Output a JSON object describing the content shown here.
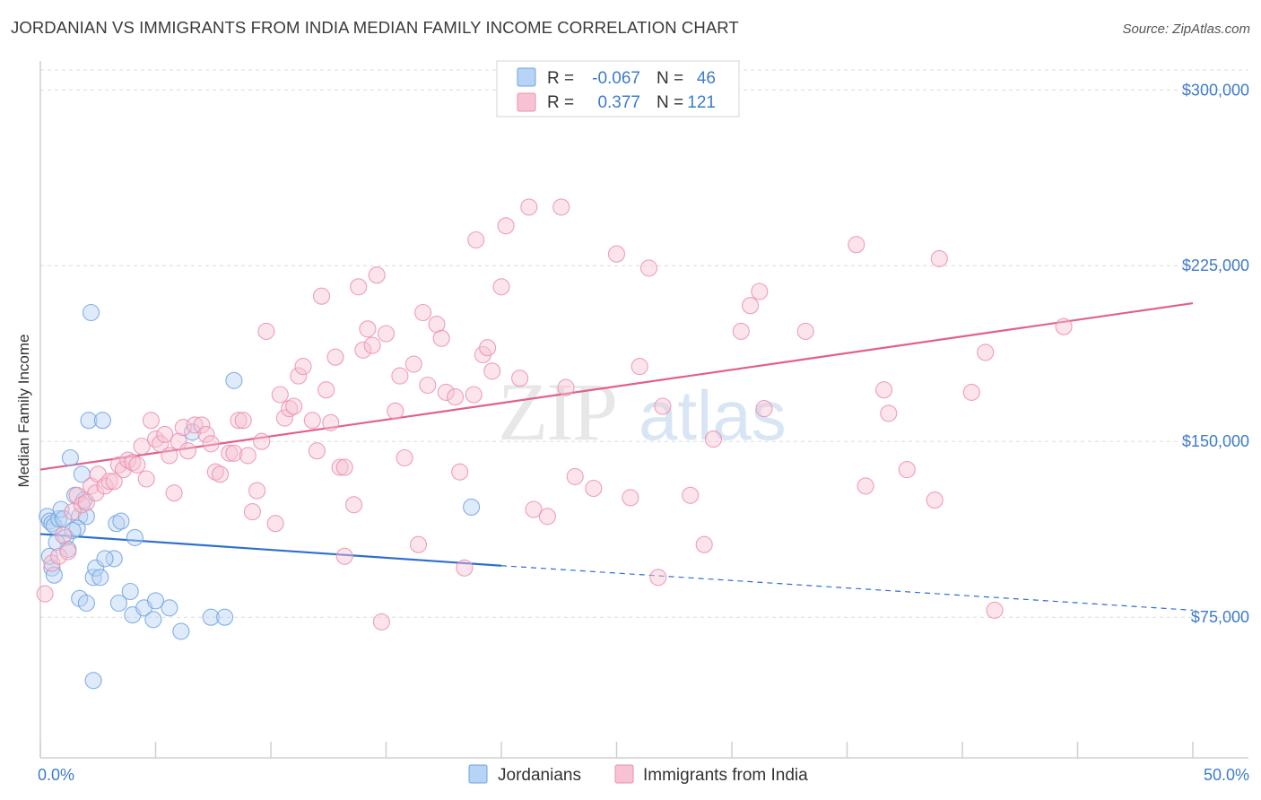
{
  "header": {
    "title": "JORDANIAN VS IMMIGRANTS FROM INDIA MEDIAN FAMILY INCOME CORRELATION CHART",
    "source": "Source: ZipAtlas.com"
  },
  "chart_data": {
    "type": "scatter",
    "title": "JORDANIAN VS IMMIGRANTS FROM INDIA MEDIAN FAMILY INCOME CORRELATION CHART",
    "xlabel": "",
    "ylabel": "Median Family Income",
    "xlim": [
      0,
      50
    ],
    "ylim": [
      15000,
      320000
    ],
    "x_tick_labels": [
      "0.0%",
      "50.0%"
    ],
    "y_ticks": [
      75000,
      150000,
      225000,
      300000
    ],
    "y_tick_labels": [
      "$75,000",
      "$150,000",
      "$225,000",
      "$300,000"
    ],
    "grid": true,
    "watermark": "ZIPatlas",
    "legend_top": [
      {
        "r_label": "R =",
        "r_value": "-0.067",
        "n_label": "N =",
        "n_value": "46"
      },
      {
        "r_label": "R =",
        "r_value": "0.377",
        "n_label": "N =",
        "n_value": "121"
      }
    ],
    "series": [
      {
        "name": "Jordanians",
        "color": "#6fa3e0",
        "fill": "#b7d3f5",
        "line_color": "#2d6fcf",
        "trend": {
          "x0": 0,
          "y0": 110500,
          "x1": 20,
          "y1": 97000,
          "x_dash_end": 50,
          "y_dash_end": 78000
        },
        "points": [
          [
            0.3,
            118000
          ],
          [
            0.4,
            116000
          ],
          [
            0.5,
            115000
          ],
          [
            0.6,
            114000
          ],
          [
            0.8,
            117000
          ],
          [
            0.9,
            121000
          ],
          [
            1.0,
            117000
          ],
          [
            1.1,
            109000
          ],
          [
            1.2,
            104000
          ],
          [
            0.7,
            107000
          ],
          [
            0.5,
            96000
          ],
          [
            0.6,
            93000
          ],
          [
            0.4,
            101000
          ],
          [
            1.3,
            143000
          ],
          [
            1.5,
            127000
          ],
          [
            1.7,
            118000
          ],
          [
            1.9,
            125000
          ],
          [
            1.8,
            136000
          ],
          [
            2.0,
            118000
          ],
          [
            2.1,
            159000
          ],
          [
            2.7,
            159000
          ],
          [
            2.2,
            205000
          ],
          [
            1.6,
            113000
          ],
          [
            1.4,
            112000
          ],
          [
            2.3,
            92000
          ],
          [
            2.4,
            96000
          ],
          [
            2.6,
            92000
          ],
          [
            3.2,
            100000
          ],
          [
            2.8,
            100000
          ],
          [
            3.3,
            115000
          ],
          [
            3.5,
            116000
          ],
          [
            4.1,
            109000
          ],
          [
            1.7,
            83000
          ],
          [
            2.0,
            81000
          ],
          [
            3.4,
            81000
          ],
          [
            3.9,
            86000
          ],
          [
            4.0,
            76000
          ],
          [
            4.5,
            79000
          ],
          [
            4.9,
            74000
          ],
          [
            5.0,
            82000
          ],
          [
            5.6,
            79000
          ],
          [
            6.1,
            69000
          ],
          [
            7.4,
            75000
          ],
          [
            8.0,
            75000
          ],
          [
            8.4,
            176000
          ],
          [
            6.6,
            154000
          ],
          [
            2.3,
            48000
          ],
          [
            18.7,
            122000
          ]
        ]
      },
      {
        "name": "Immigrants from India",
        "color": "#eb8fae",
        "fill": "#f7c3d4",
        "line_color": "#e0608f",
        "trend": {
          "x0": 0,
          "y0": 138000,
          "x1": 50,
          "y1": 209000
        },
        "points": [
          [
            0.2,
            85000
          ],
          [
            0.5,
            98000
          ],
          [
            0.8,
            101000
          ],
          [
            1.0,
            110000
          ],
          [
            1.2,
            103000
          ],
          [
            1.4,
            120000
          ],
          [
            1.6,
            127000
          ],
          [
            1.8,
            123000
          ],
          [
            2.0,
            124000
          ],
          [
            2.2,
            131000
          ],
          [
            2.4,
            128000
          ],
          [
            2.5,
            136000
          ],
          [
            2.8,
            131000
          ],
          [
            3.0,
            133000
          ],
          [
            3.2,
            133000
          ],
          [
            3.4,
            140000
          ],
          [
            3.6,
            138000
          ],
          [
            3.8,
            142000
          ],
          [
            4.0,
            141000
          ],
          [
            4.2,
            140000
          ],
          [
            4.4,
            148000
          ],
          [
            4.6,
            134000
          ],
          [
            4.8,
            159000
          ],
          [
            5.0,
            151000
          ],
          [
            5.2,
            149000
          ],
          [
            5.4,
            153000
          ],
          [
            5.6,
            144000
          ],
          [
            5.8,
            128000
          ],
          [
            6.0,
            150000
          ],
          [
            6.2,
            156000
          ],
          [
            6.4,
            146000
          ],
          [
            6.7,
            157000
          ],
          [
            7.0,
            157000
          ],
          [
            7.2,
            153000
          ],
          [
            7.4,
            149000
          ],
          [
            7.6,
            137000
          ],
          [
            7.8,
            136000
          ],
          [
            8.2,
            145000
          ],
          [
            8.4,
            145000
          ],
          [
            8.6,
            159000
          ],
          [
            8.8,
            159000
          ],
          [
            9.0,
            144000
          ],
          [
            9.2,
            120000
          ],
          [
            9.4,
            129000
          ],
          [
            9.6,
            150000
          ],
          [
            9.8,
            197000
          ],
          [
            10.2,
            115000
          ],
          [
            10.4,
            170000
          ],
          [
            10.6,
            160000
          ],
          [
            10.8,
            164000
          ],
          [
            11.0,
            165000
          ],
          [
            11.2,
            178000
          ],
          [
            11.4,
            182000
          ],
          [
            11.8,
            159000
          ],
          [
            12.0,
            146000
          ],
          [
            12.2,
            212000
          ],
          [
            12.4,
            172000
          ],
          [
            12.6,
            158000
          ],
          [
            12.8,
            186000
          ],
          [
            13.0,
            139000
          ],
          [
            13.2,
            139000
          ],
          [
            13.6,
            123000
          ],
          [
            13.8,
            216000
          ],
          [
            14.0,
            189000
          ],
          [
            14.2,
            198000
          ],
          [
            14.4,
            191000
          ],
          [
            14.6,
            221000
          ],
          [
            15.0,
            196000
          ],
          [
            15.4,
            163000
          ],
          [
            15.6,
            178000
          ],
          [
            15.8,
            143000
          ],
          [
            16.2,
            183000
          ],
          [
            16.4,
            106000
          ],
          [
            16.6,
            205000
          ],
          [
            16.8,
            174000
          ],
          [
            17.2,
            200000
          ],
          [
            17.4,
            194000
          ],
          [
            17.6,
            171000
          ],
          [
            18.0,
            169000
          ],
          [
            18.2,
            137000
          ],
          [
            18.4,
            96000
          ],
          [
            18.8,
            170000
          ],
          [
            19.2,
            187000
          ],
          [
            19.4,
            190000
          ],
          [
            18.9,
            236000
          ],
          [
            19.6,
            180000
          ],
          [
            20.0,
            216000
          ],
          [
            20.2,
            242000
          ],
          [
            20.8,
            177000
          ],
          [
            21.2,
            250000
          ],
          [
            21.4,
            121000
          ],
          [
            22.0,
            118000
          ],
          [
            22.6,
            250000
          ],
          [
            22.8,
            173000
          ],
          [
            23.2,
            135000
          ],
          [
            24.0,
            130000
          ],
          [
            25.0,
            230000
          ],
          [
            25.6,
            126000
          ],
          [
            26.0,
            182000
          ],
          [
            26.4,
            224000
          ],
          [
            26.8,
            92000
          ],
          [
            27.0,
            165000
          ],
          [
            28.2,
            127000
          ],
          [
            28.8,
            106000
          ],
          [
            29.2,
            151000
          ],
          [
            30.4,
            197000
          ],
          [
            30.8,
            208000
          ],
          [
            31.2,
            214000
          ],
          [
            31.4,
            164000
          ],
          [
            33.2,
            197000
          ],
          [
            35.4,
            234000
          ],
          [
            35.8,
            131000
          ],
          [
            36.6,
            172000
          ],
          [
            36.8,
            162000
          ],
          [
            37.6,
            138000
          ],
          [
            38.8,
            125000
          ],
          [
            39.0,
            228000
          ],
          [
            40.4,
            171000
          ],
          [
            41.0,
            188000
          ],
          [
            41.4,
            78000
          ],
          [
            44.4,
            199000
          ],
          [
            14.8,
            73000
          ],
          [
            13.2,
            101000
          ]
        ]
      }
    ]
  },
  "legend_bottom": [
    "Jordanians",
    "Immigrants from India"
  ]
}
